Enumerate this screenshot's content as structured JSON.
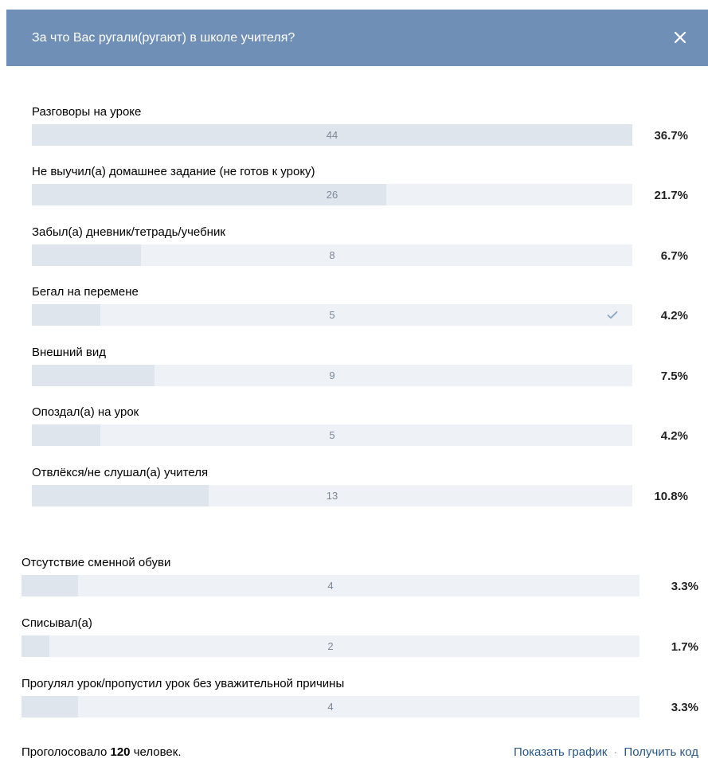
{
  "header": {
    "title": "За что Вас ругали(ругают) в школе учителя?",
    "close_icon": "close-icon"
  },
  "colors": {
    "header_bg": "#6f8fb6",
    "bar_track": "#eef1f5",
    "bar_fill": "#dfe5ec",
    "link": "#2a5885"
  },
  "options": [
    {
      "label": "Разговоры на уроке",
      "count": "44",
      "percent": "36.7%",
      "share": 1.0,
      "selected": false
    },
    {
      "label": "Не выучил(а) домашнее задание (не готов к уроку)",
      "count": "26",
      "percent": "21.7%",
      "share": 0.59,
      "selected": false
    },
    {
      "label": "Забыл(а) дневник/тетрадь/учебник",
      "count": "8",
      "percent": "6.7%",
      "share": 0.182,
      "selected": false
    },
    {
      "label": "Бегал на перемене",
      "count": "5",
      "percent": "4.2%",
      "share": 0.114,
      "selected": true
    },
    {
      "label": "Внешний вид",
      "count": "9",
      "percent": "7.5%",
      "share": 0.204,
      "selected": false
    },
    {
      "label": "Опоздал(а) на урок",
      "count": "5",
      "percent": "4.2%",
      "share": 0.114,
      "selected": false
    },
    {
      "label": "Отвлёкся/не слушал(а) учителя",
      "count": "13",
      "percent": "10.8%",
      "share": 0.295,
      "selected": false
    },
    {
      "label": "Отсутствие сменной обуви",
      "count": "4",
      "percent": "3.3%",
      "share": 0.091,
      "selected": false
    },
    {
      "label": "Списывал(а)",
      "count": "2",
      "percent": "1.7%",
      "share": 0.045,
      "selected": false
    },
    {
      "label": "Прогулял урок/пропустил урок без уважительной причины",
      "count": "4",
      "percent": "3.3%",
      "share": 0.091,
      "selected": false
    }
  ],
  "footer": {
    "voted_prefix": "Проголосовало",
    "voted_count": "120",
    "voted_suffix": "человек.",
    "show_chart_label": "Показать график",
    "separator": "·",
    "get_code_label": "Получить код"
  }
}
